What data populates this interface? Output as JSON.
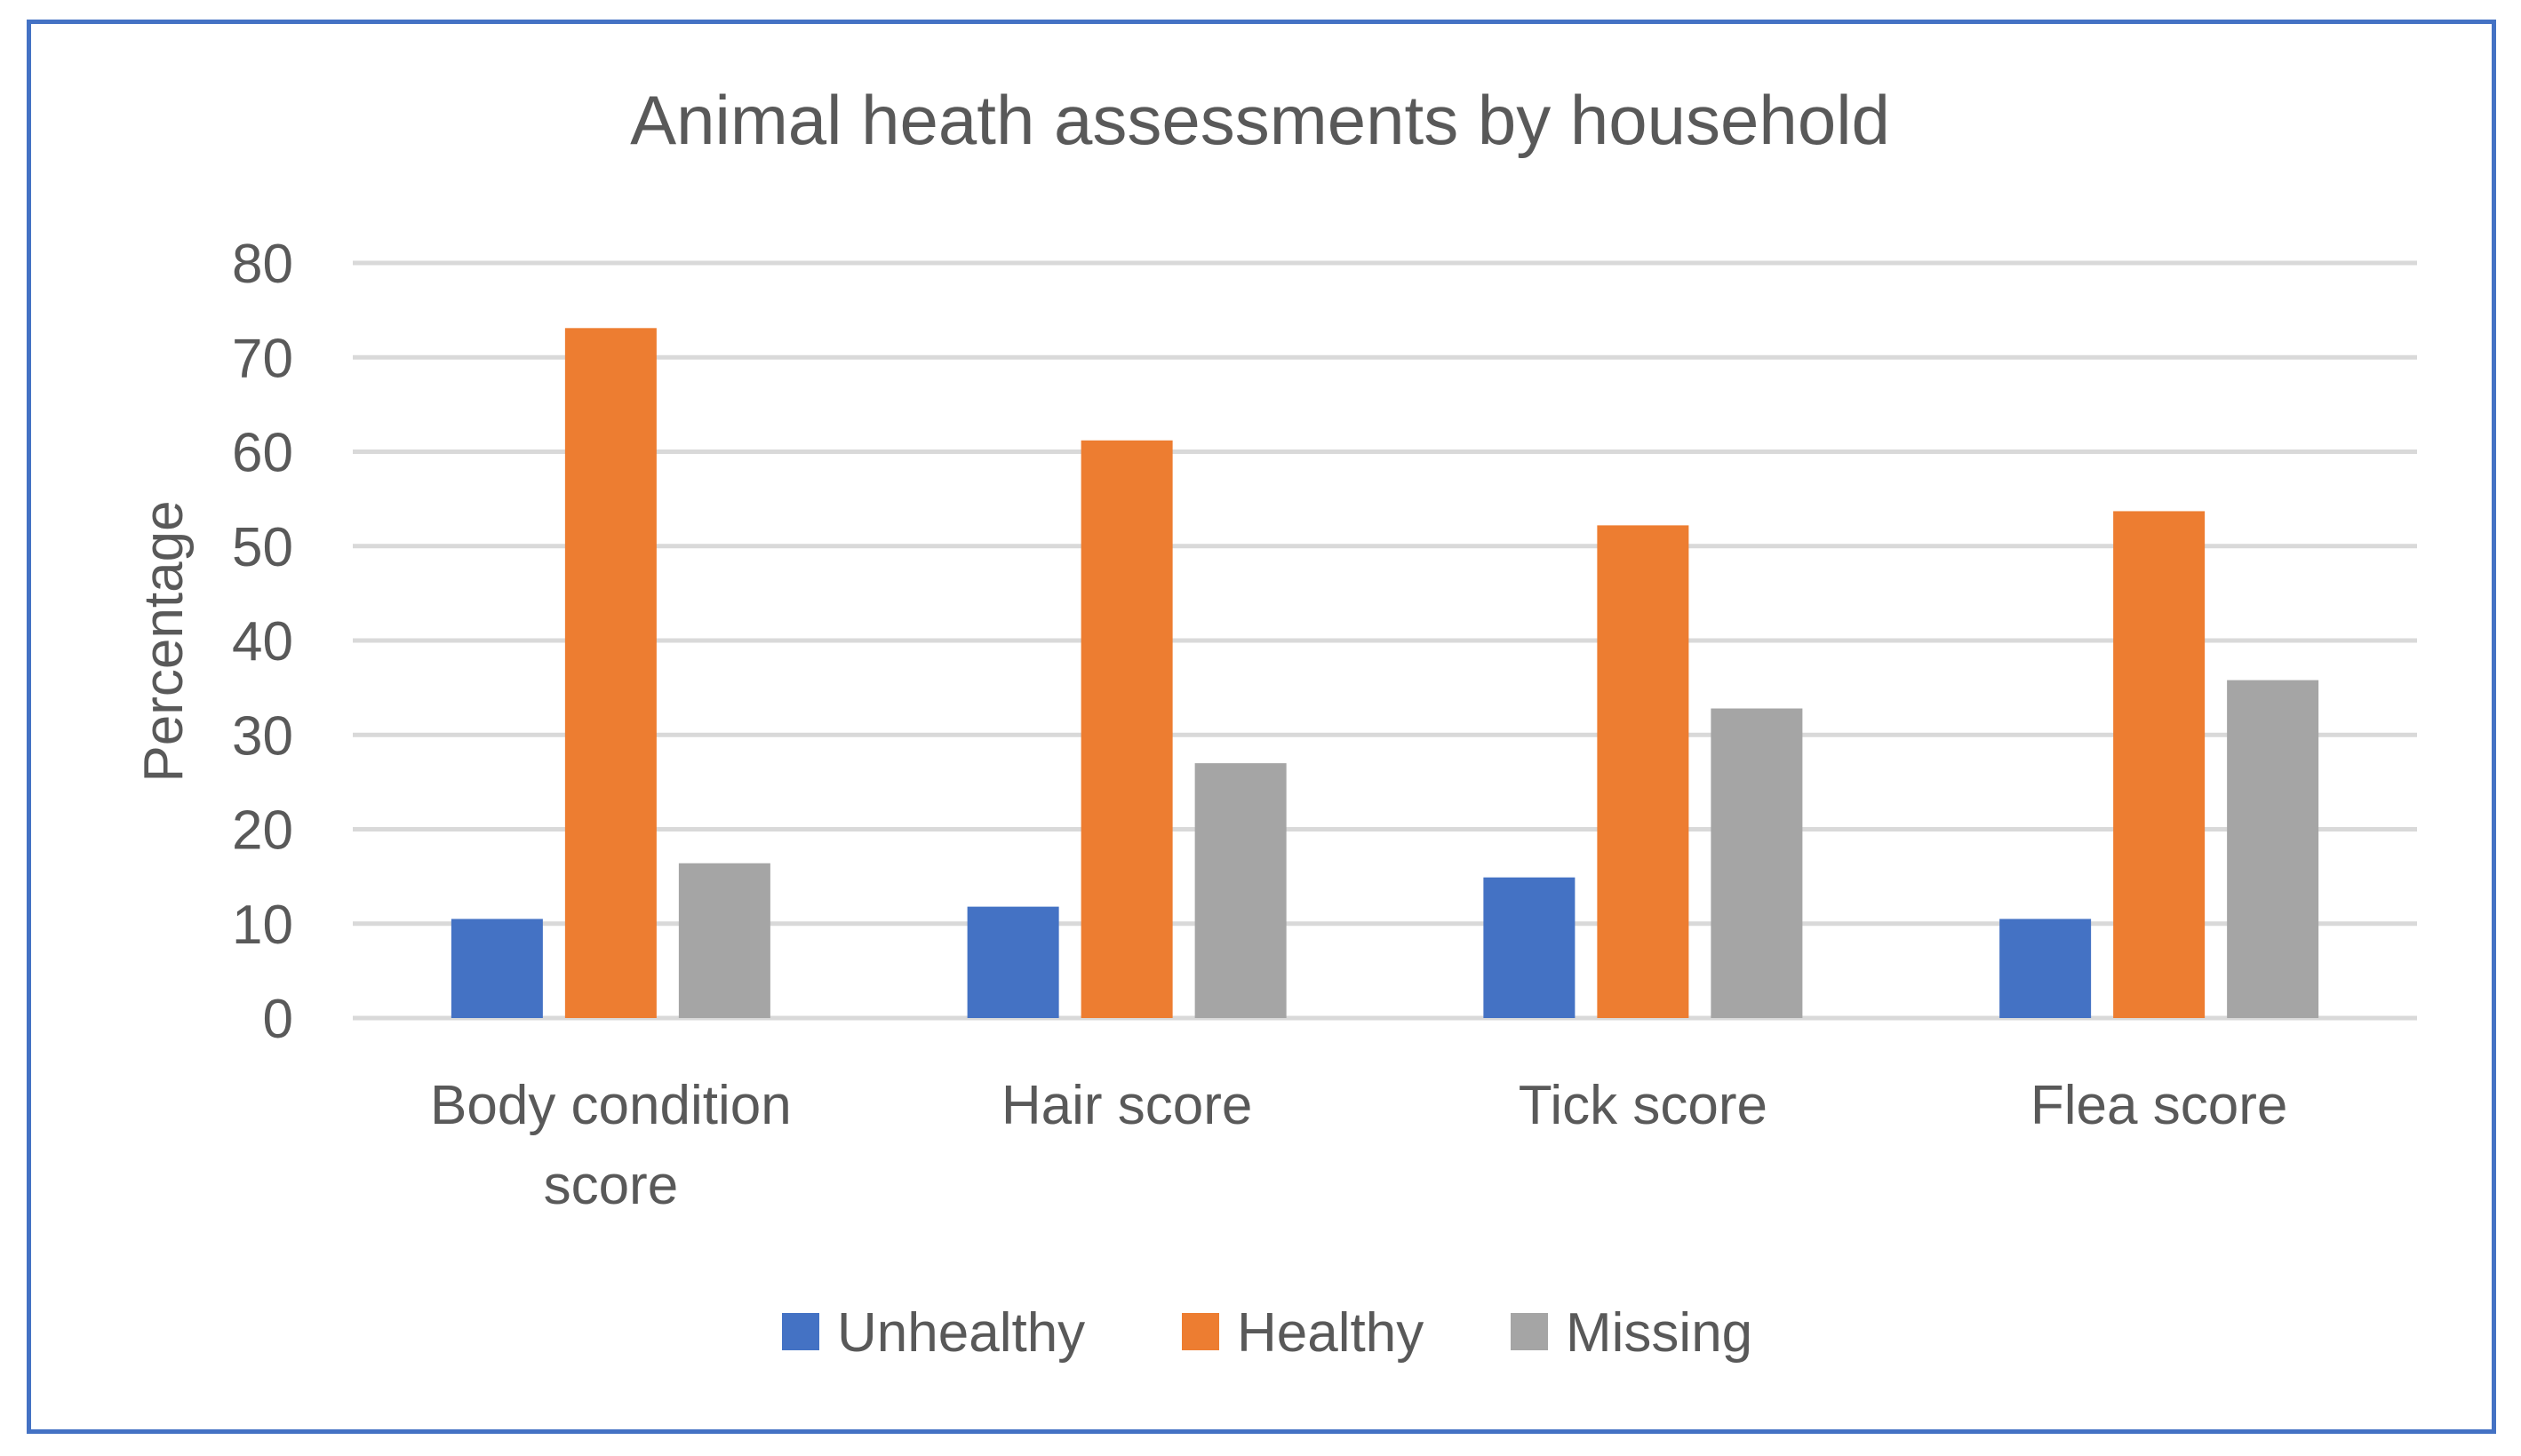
{
  "chart_data": {
    "type": "bar",
    "title": "Animal heath assessments by household",
    "xlabel": "",
    "ylabel": "Percentage",
    "ylim": [
      0,
      80
    ],
    "yticks": [
      0,
      10,
      20,
      30,
      40,
      50,
      60,
      70,
      80
    ],
    "grid": true,
    "legend_position": "bottom",
    "categories": [
      [
        "Body condition",
        "score"
      ],
      [
        "Hair score"
      ],
      [
        "Tick score"
      ],
      [
        "Flea score"
      ]
    ],
    "series": [
      {
        "name": "Unhealthy",
        "color": "#4472c4",
        "values": [
          10.5,
          11.8,
          14.9,
          10.5
        ]
      },
      {
        "name": "Healthy",
        "color": "#ed7d31",
        "values": [
          73.1,
          61.2,
          52.2,
          53.7
        ]
      },
      {
        "name": "Missing",
        "color": "#a5a5a5",
        "values": [
          16.4,
          27.0,
          32.8,
          35.8
        ]
      }
    ],
    "gridline_color": "#d9d9d9",
    "border_color": "#4472c4"
  }
}
